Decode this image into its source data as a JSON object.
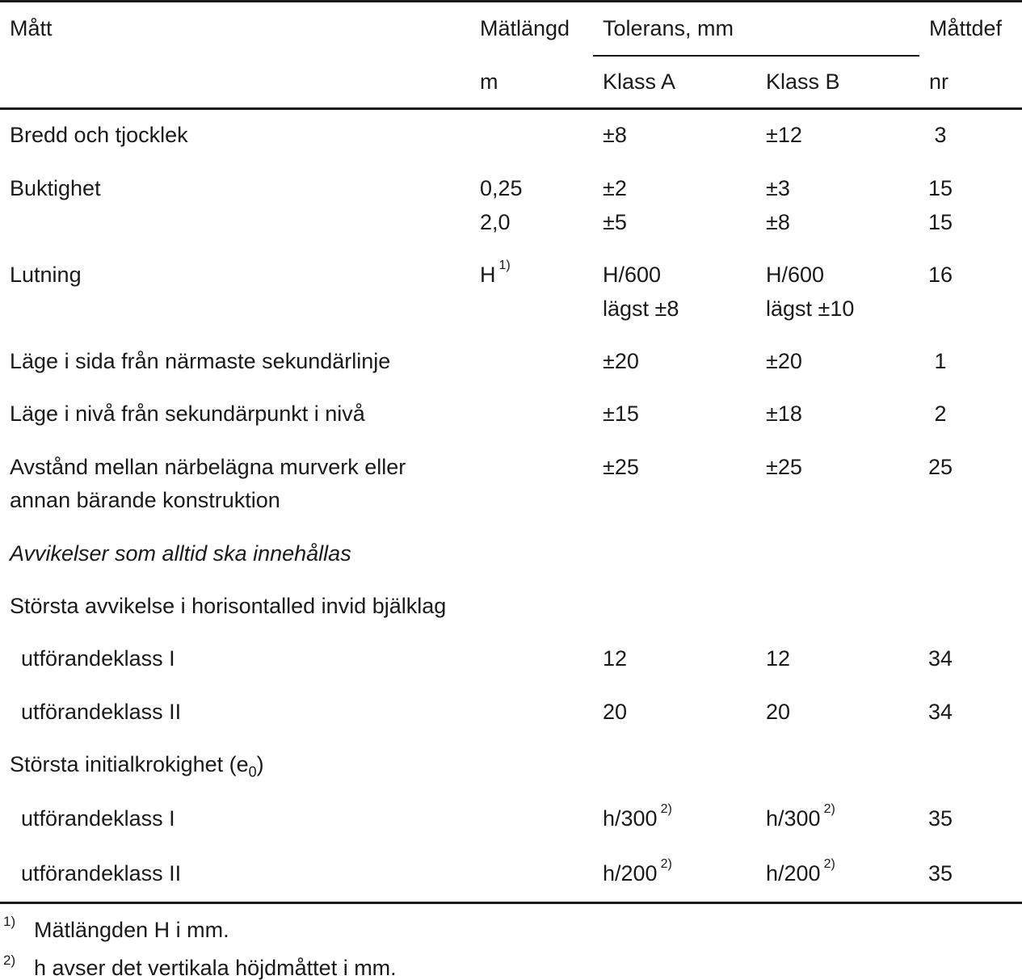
{
  "header": {
    "col_matt": "Mått",
    "col_matlangd": "Mätlängd",
    "col_matlangd_unit": "m",
    "col_tolerans": "Tolerans, mm",
    "col_klass_a": "Klass A",
    "col_klass_b": "Klass B",
    "col_mattdef": "Måttdef",
    "col_mattdef_unit": "nr"
  },
  "rows": {
    "bredd": {
      "label": "Bredd och tjocklek",
      "a": "±8",
      "b": "±12",
      "nr": "3"
    },
    "buktighet": {
      "label": "Buktighet",
      "l1": "0,25",
      "a1": "±2",
      "b1": "±3",
      "nr1": "15",
      "l2": "2,0",
      "a2": "±5",
      "b2": "±8",
      "nr2": "15"
    },
    "lutning": {
      "label": "Lutning",
      "langd": "H",
      "langd_note": "1)",
      "a1": "H/600",
      "a2": "lägst ±8",
      "b1": "H/600",
      "b2": "lägst ±10",
      "nr": "16"
    },
    "lage_sida": {
      "label": "Läge i sida från närmaste sekundärlinje",
      "a": "±20",
      "b": "±20",
      "nr": "1"
    },
    "lage_niva": {
      "label": "Läge i nivå från sekundärpunkt i nivå",
      "a": "±15",
      "b": "±18",
      "nr": "2"
    },
    "avstand": {
      "label1": "Avstånd mellan närbelägna murverk eller",
      "label2": "annan bärande konstruktion",
      "a": "±25",
      "b": "±25",
      "nr": "25"
    },
    "section": {
      "label": "Avvikelser som alltid ska innehållas"
    },
    "horisontalled": {
      "label": "Största avvikelse i horisontalled invid bjälklag"
    },
    "h_klass1": {
      "label": "utförandeklass I",
      "a": "12",
      "b": "12",
      "nr": "34"
    },
    "h_klass2": {
      "label": "utförandeklass II",
      "a": "20",
      "b": "20",
      "nr": "34"
    },
    "krokighet": {
      "label": "Största initialkrokighet (e",
      "sub": "0",
      "close": ")"
    },
    "k_klass1": {
      "label": "utförandeklass I",
      "a": "h/300",
      "b": "h/300",
      "note": "2)",
      "nr": "35"
    },
    "k_klass2": {
      "label": "utförandeklass II",
      "a": "h/200",
      "b": "h/200",
      "note": "2)",
      "nr": "35"
    }
  },
  "footnotes": {
    "f1_mark": "1)",
    "f1_text": "Mätlängden H i mm.",
    "f2_mark": "2)",
    "f2_text": "h avser det vertikala höjdmåttet i mm."
  }
}
